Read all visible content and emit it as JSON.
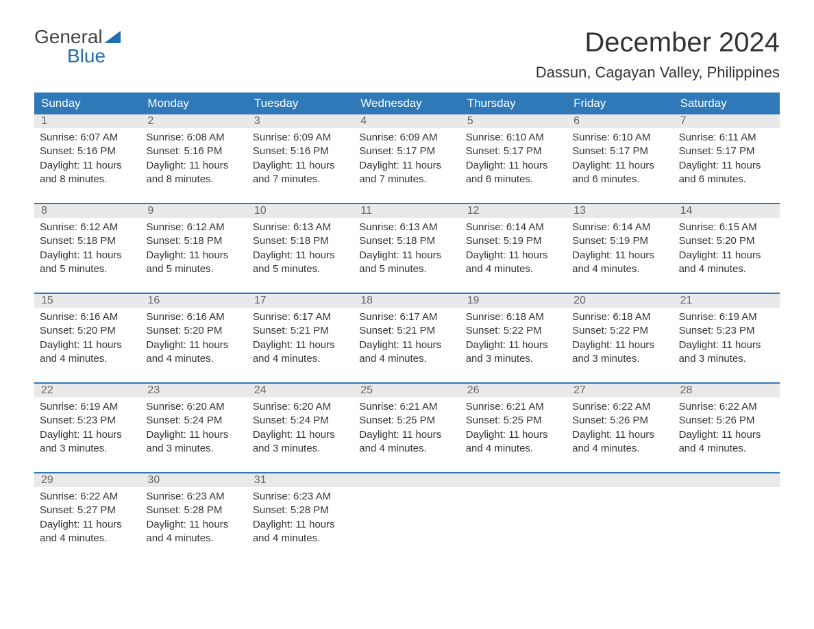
{
  "brand": {
    "general": "General",
    "blue": "Blue"
  },
  "title": "December 2024",
  "location": "Dassun, Cagayan Valley, Philippines",
  "colors": {
    "header_bg": "#2f79b9",
    "header_text": "#ffffff",
    "daynum_bg": "#e9e9e9",
    "daynum_text": "#666666",
    "body_text": "#333333",
    "accent": "#1f6fb2",
    "page_bg": "#ffffff"
  },
  "days_of_week": [
    "Sunday",
    "Monday",
    "Tuesday",
    "Wednesday",
    "Thursday",
    "Friday",
    "Saturday"
  ],
  "labels": {
    "sunrise": "Sunrise: ",
    "sunset": "Sunset: ",
    "daylight": "Daylight: "
  },
  "weeks": [
    [
      {
        "num": "1",
        "sunrise": "6:07 AM",
        "sunset": "5:16 PM",
        "daylight": "11 hours and 8 minutes."
      },
      {
        "num": "2",
        "sunrise": "6:08 AM",
        "sunset": "5:16 PM",
        "daylight": "11 hours and 8 minutes."
      },
      {
        "num": "3",
        "sunrise": "6:09 AM",
        "sunset": "5:16 PM",
        "daylight": "11 hours and 7 minutes."
      },
      {
        "num": "4",
        "sunrise": "6:09 AM",
        "sunset": "5:17 PM",
        "daylight": "11 hours and 7 minutes."
      },
      {
        "num": "5",
        "sunrise": "6:10 AM",
        "sunset": "5:17 PM",
        "daylight": "11 hours and 6 minutes."
      },
      {
        "num": "6",
        "sunrise": "6:10 AM",
        "sunset": "5:17 PM",
        "daylight": "11 hours and 6 minutes."
      },
      {
        "num": "7",
        "sunrise": "6:11 AM",
        "sunset": "5:17 PM",
        "daylight": "11 hours and 6 minutes."
      }
    ],
    [
      {
        "num": "8",
        "sunrise": "6:12 AM",
        "sunset": "5:18 PM",
        "daylight": "11 hours and 5 minutes."
      },
      {
        "num": "9",
        "sunrise": "6:12 AM",
        "sunset": "5:18 PM",
        "daylight": "11 hours and 5 minutes."
      },
      {
        "num": "10",
        "sunrise": "6:13 AM",
        "sunset": "5:18 PM",
        "daylight": "11 hours and 5 minutes."
      },
      {
        "num": "11",
        "sunrise": "6:13 AM",
        "sunset": "5:18 PM",
        "daylight": "11 hours and 5 minutes."
      },
      {
        "num": "12",
        "sunrise": "6:14 AM",
        "sunset": "5:19 PM",
        "daylight": "11 hours and 4 minutes."
      },
      {
        "num": "13",
        "sunrise": "6:14 AM",
        "sunset": "5:19 PM",
        "daylight": "11 hours and 4 minutes."
      },
      {
        "num": "14",
        "sunrise": "6:15 AM",
        "sunset": "5:20 PM",
        "daylight": "11 hours and 4 minutes."
      }
    ],
    [
      {
        "num": "15",
        "sunrise": "6:16 AM",
        "sunset": "5:20 PM",
        "daylight": "11 hours and 4 minutes."
      },
      {
        "num": "16",
        "sunrise": "6:16 AM",
        "sunset": "5:20 PM",
        "daylight": "11 hours and 4 minutes."
      },
      {
        "num": "17",
        "sunrise": "6:17 AM",
        "sunset": "5:21 PM",
        "daylight": "11 hours and 4 minutes."
      },
      {
        "num": "18",
        "sunrise": "6:17 AM",
        "sunset": "5:21 PM",
        "daylight": "11 hours and 4 minutes."
      },
      {
        "num": "19",
        "sunrise": "6:18 AM",
        "sunset": "5:22 PM",
        "daylight": "11 hours and 3 minutes."
      },
      {
        "num": "20",
        "sunrise": "6:18 AM",
        "sunset": "5:22 PM",
        "daylight": "11 hours and 3 minutes."
      },
      {
        "num": "21",
        "sunrise": "6:19 AM",
        "sunset": "5:23 PM",
        "daylight": "11 hours and 3 minutes."
      }
    ],
    [
      {
        "num": "22",
        "sunrise": "6:19 AM",
        "sunset": "5:23 PM",
        "daylight": "11 hours and 3 minutes."
      },
      {
        "num": "23",
        "sunrise": "6:20 AM",
        "sunset": "5:24 PM",
        "daylight": "11 hours and 3 minutes."
      },
      {
        "num": "24",
        "sunrise": "6:20 AM",
        "sunset": "5:24 PM",
        "daylight": "11 hours and 3 minutes."
      },
      {
        "num": "25",
        "sunrise": "6:21 AM",
        "sunset": "5:25 PM",
        "daylight": "11 hours and 4 minutes."
      },
      {
        "num": "26",
        "sunrise": "6:21 AM",
        "sunset": "5:25 PM",
        "daylight": "11 hours and 4 minutes."
      },
      {
        "num": "27",
        "sunrise": "6:22 AM",
        "sunset": "5:26 PM",
        "daylight": "11 hours and 4 minutes."
      },
      {
        "num": "28",
        "sunrise": "6:22 AM",
        "sunset": "5:26 PM",
        "daylight": "11 hours and 4 minutes."
      }
    ],
    [
      {
        "num": "29",
        "sunrise": "6:22 AM",
        "sunset": "5:27 PM",
        "daylight": "11 hours and 4 minutes."
      },
      {
        "num": "30",
        "sunrise": "6:23 AM",
        "sunset": "5:28 PM",
        "daylight": "11 hours and 4 minutes."
      },
      {
        "num": "31",
        "sunrise": "6:23 AM",
        "sunset": "5:28 PM",
        "daylight": "11 hours and 4 minutes."
      },
      null,
      null,
      null,
      null
    ]
  ]
}
